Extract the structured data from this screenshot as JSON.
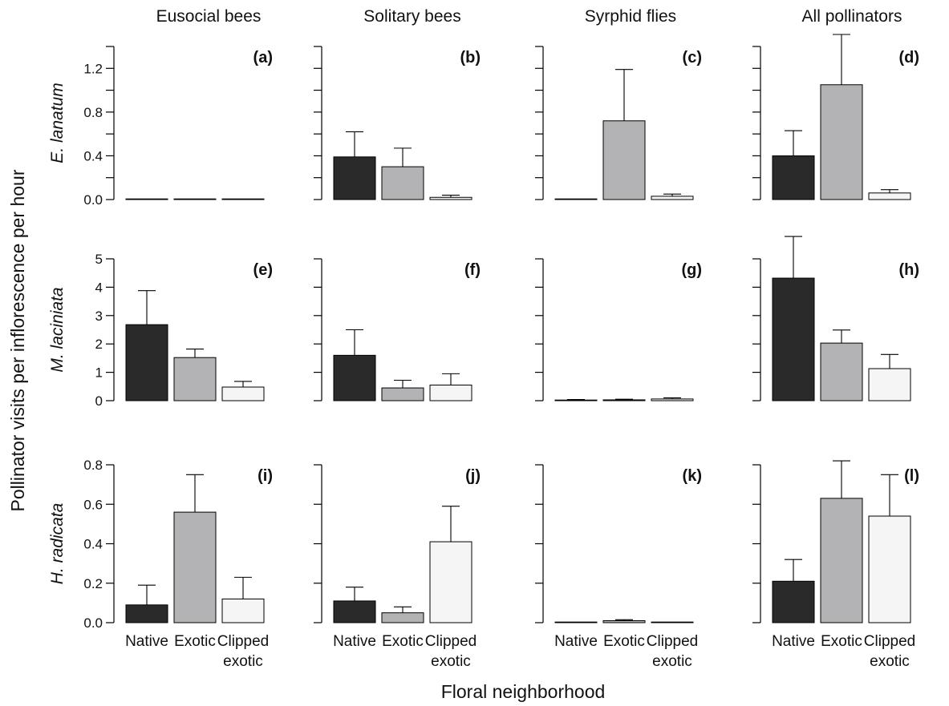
{
  "figure": {
    "ylabel": "Pollinator visits per inflorescence per hour",
    "xlabel": "Floral neighborhood"
  },
  "chart_data": {
    "type": "bar",
    "categories": [
      "Native",
      "Exotic",
      "Clipped exotic"
    ],
    "category_colors": [
      "#2a2a2a",
      "#b3b3b6",
      "#f4f5f4"
    ],
    "columns": [
      "Eusocial bees",
      "Solitary bees",
      "Syrphid flies",
      "All pollinators"
    ],
    "rows": [
      {
        "label": "E. lanatum",
        "ylim": [
          0,
          1.4
        ],
        "ticks": [
          "0.0",
          "0.4",
          "0.8",
          "1.2"
        ],
        "tick_values": [
          0,
          0.4,
          0.8,
          1.2
        ],
        "minor_step": 0.2,
        "panels": [
          {
            "letter": "(a)",
            "values": [
              0,
              0,
              0
            ],
            "errors": [
              0,
              0,
              0
            ]
          },
          {
            "letter": "(b)",
            "values": [
              0.39,
              0.3,
              0.02
            ],
            "errors": [
              0.23,
              0.17,
              0.02
            ]
          },
          {
            "letter": "(c)",
            "values": [
              0,
              0.72,
              0.03
            ],
            "errors": [
              0,
              0.47,
              0.02
            ]
          },
          {
            "letter": "(d)",
            "values": [
              0.4,
              1.05,
              0.06
            ],
            "errors": [
              0.23,
              0.46,
              0.03
            ]
          }
        ]
      },
      {
        "label": "M. laciniata",
        "ylim": [
          0,
          5
        ],
        "ticks": [
          "0",
          "1",
          "2",
          "3",
          "4",
          "5"
        ],
        "tick_values": [
          0,
          1,
          2,
          3,
          4,
          5
        ],
        "minor_step": 1,
        "panels": [
          {
            "letter": "(e)",
            "values": [
              2.68,
              1.52,
              0.48
            ],
            "errors": [
              1.2,
              0.3,
              0.2
            ]
          },
          {
            "letter": "(f)",
            "values": [
              1.6,
              0.45,
              0.55
            ],
            "errors": [
              0.9,
              0.27,
              0.4
            ]
          },
          {
            "letter": "(g)",
            "values": [
              0.02,
              0.03,
              0.06
            ],
            "errors": [
              0.02,
              0.02,
              0.04
            ]
          },
          {
            "letter": "(h)",
            "values": [
              4.32,
              2.03,
              1.13
            ],
            "errors": [
              1.47,
              0.46,
              0.5
            ]
          }
        ]
      },
      {
        "label": "H. radicata",
        "ylim": [
          0,
          0.8
        ],
        "ticks": [
          "0.0",
          "0.2",
          "0.4",
          "0.6",
          "0.8"
        ],
        "tick_values": [
          0,
          0.2,
          0.4,
          0.6,
          0.8
        ],
        "minor_step": 0.2,
        "panels": [
          {
            "letter": "(i)",
            "values": [
              0.09,
              0.56,
              0.12
            ],
            "errors": [
              0.1,
              0.19,
              0.11
            ]
          },
          {
            "letter": "(j)",
            "values": [
              0.11,
              0.05,
              0.41
            ],
            "errors": [
              0.07,
              0.03,
              0.18
            ]
          },
          {
            "letter": "(k)",
            "values": [
              0,
              0.01,
              0
            ],
            "errors": [
              0,
              0.005,
              0
            ]
          },
          {
            "letter": "(l)",
            "values": [
              0.21,
              0.63,
              0.54
            ],
            "errors": [
              0.11,
              0.19,
              0.21
            ]
          }
        ]
      }
    ]
  }
}
